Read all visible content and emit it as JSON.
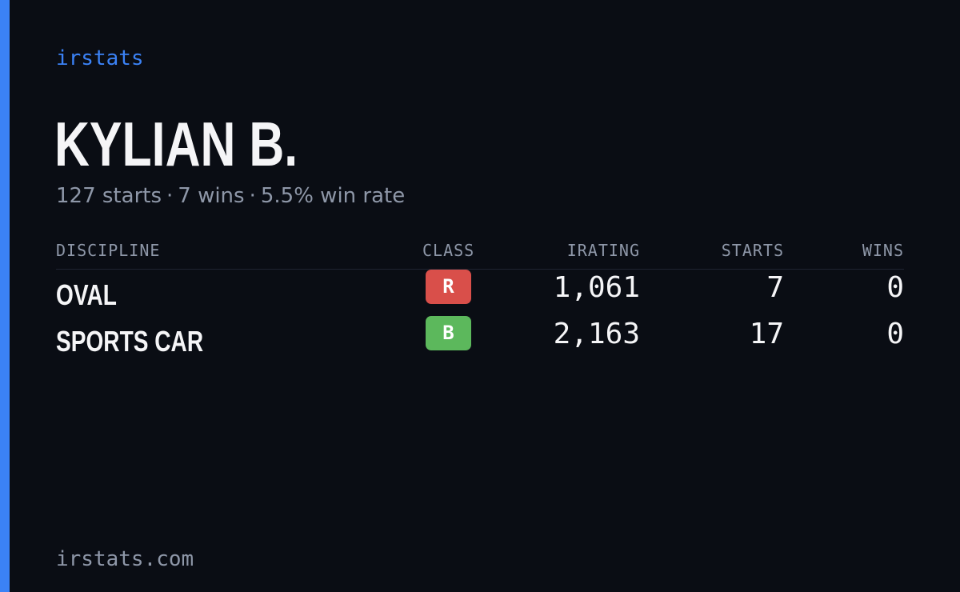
{
  "brand": "irstats",
  "driver": {
    "name": "KYLIAN B."
  },
  "summary": {
    "starts": "127 starts",
    "wins": "7 wins",
    "win_rate": "5.5% win rate",
    "separator": "·"
  },
  "table": {
    "headers": {
      "discipline": "DISCIPLINE",
      "class": "CLASS",
      "irating": "IRATING",
      "starts": "STARTS",
      "wins": "WINS"
    },
    "rows": [
      {
        "discipline": "OVAL",
        "class": "R",
        "class_color": "#d94f4a",
        "irating": "1,061",
        "starts": "7",
        "wins": "0"
      },
      {
        "discipline": "SPORTS CAR",
        "class": "B",
        "class_color": "#5cb85c",
        "irating": "2,163",
        "starts": "17",
        "wins": "0"
      }
    ]
  },
  "footer": "irstats.com",
  "colors": {
    "accent": "#3b82f6",
    "background": "#0a0d14",
    "muted_text": "#8e97a8"
  }
}
